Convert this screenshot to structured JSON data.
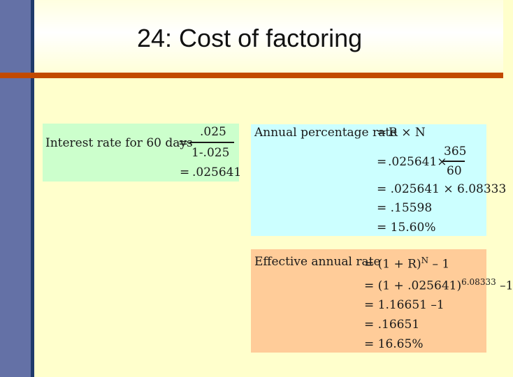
{
  "slide": {
    "title": "24: Cost of factoring"
  },
  "interest_box": {
    "label": "Interest rate for 60 days",
    "eq": "=",
    "numerator": ".025",
    "denominator": "1-.025",
    "result_eq": "=",
    "result": ".025641"
  },
  "apr_box": {
    "label": "Annual percentage rate",
    "eq": "=",
    "formula": "R × N",
    "line2_eq": "=",
    "line2_factor": ".025641×",
    "line2_numerator": "365",
    "line2_denominator": "60",
    "line3": "= .025641 × 6.08333",
    "line4": "= .15598",
    "line5": "= 15.60%"
  },
  "ear_box": {
    "label": "Effective annual rate",
    "formula_base": "= (1 + R)",
    "formula_exp": "N",
    "formula_tail": " – 1",
    "line2_base": "= (1 + .025641)",
    "line2_exp": "6.08333",
    "line2_tail": " –1",
    "line3": "= 1.16651 –1",
    "line4": "= .16651",
    "line5": "= 16.65%"
  },
  "colors": {
    "background": "#ffffcc",
    "left_bar": "#6471a6",
    "title_rule": "#c24a00",
    "green_box": "#ccffcc",
    "cyan_box": "#ccffff",
    "orange_box": "#ffcc99"
  }
}
